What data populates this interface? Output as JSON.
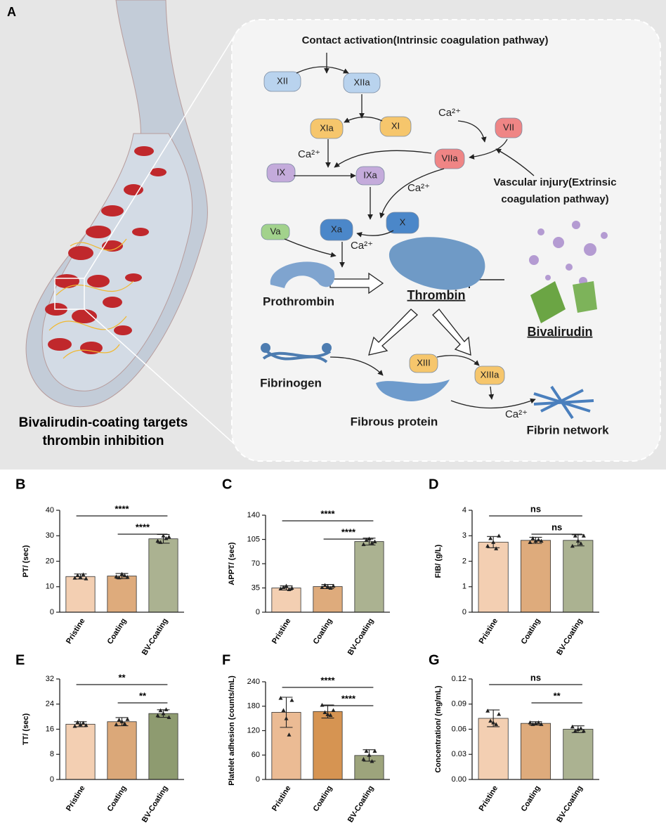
{
  "diagram": {
    "panel": "A",
    "intrinsic": "Contact activation(Intrinsic coagulation pathway)",
    "extrinsic": [
      "Vascular injury(Extrinsic",
      "coagulation pathway)"
    ],
    "calcium": [
      "Ca²⁺",
      "Ca²⁺",
      "Ca²⁺",
      "Ca²⁺",
      "Ca²⁺"
    ],
    "nodes": [
      "XII",
      "XIIa",
      "XIa",
      "XI",
      "VII",
      "VIIa",
      "IX",
      "IXa",
      "Xa",
      "X",
      "Va",
      "XIII",
      "XIIIa"
    ],
    "prothrombin": "Prothrombin",
    "thrombin": "Thrombin",
    "bivalirudin": "Bivalirudin",
    "fibrinogen": "Fibrinogen",
    "fibrous_protein": "Fibrous protein",
    "fibrin_network": "Fibrin network",
    "caption": [
      "Bivalirudin-coating targets",
      "thrombin inhibition"
    ]
  },
  "chart_data": [
    {
      "type": "bar",
      "panel": "B",
      "ylabel": "PT/ (sec)",
      "categories": [
        "Pristine",
        "Coating",
        "BV-Coating"
      ],
      "values": [
        14,
        14.2,
        28.8
      ],
      "errors": [
        1,
        1,
        1.7
      ],
      "points": [
        [
          13.5,
          14.5,
          13.8,
          14.8,
          13.2
        ],
        [
          14,
          13.6,
          15,
          14.4,
          13.8
        ],
        [
          28,
          27.5,
          30,
          29,
          29.6
        ]
      ],
      "colors": [
        "#f3cfb2",
        "#deab7c",
        "#abb291"
      ],
      "ylim": [
        0,
        40
      ],
      "yticks": [
        0,
        10,
        20,
        30,
        40
      ],
      "annotations": [
        {
          "label": "****",
          "between": [
            0,
            2
          ]
        },
        {
          "label": "****",
          "between": [
            1,
            2
          ]
        }
      ]
    },
    {
      "type": "bar",
      "panel": "C",
      "ylabel": "APPT/ (sec)",
      "categories": [
        "Pristine",
        "Coating",
        "BV-Coating"
      ],
      "values": [
        35,
        37,
        102
      ],
      "errors": [
        3,
        3,
        5
      ],
      "points": [
        [
          34,
          36,
          38,
          33,
          35
        ],
        [
          36,
          39,
          37,
          35,
          38
        ],
        [
          98,
          104,
          106,
          100,
          102
        ]
      ],
      "colors": [
        "#f3cfb2",
        "#deab7c",
        "#abb291"
      ],
      "ylim": [
        0,
        140
      ],
      "yticks": [
        0,
        35,
        70,
        105,
        140
      ],
      "annotations": [
        {
          "label": "****",
          "between": [
            0,
            2
          ]
        },
        {
          "label": "****",
          "between": [
            1,
            2
          ]
        }
      ]
    },
    {
      "type": "bar",
      "panel": "D",
      "ylabel": "FIB/ (g/L)",
      "categories": [
        "Pristine",
        "Coating",
        "BV-Coating"
      ],
      "values": [
        2.75,
        2.82,
        2.82
      ],
      "errors": [
        0.22,
        0.12,
        0.22
      ],
      "points": [
        [
          2.6,
          2.9,
          2.75,
          2.5,
          3.0
        ],
        [
          2.75,
          2.9,
          2.8,
          2.85,
          2.8
        ],
        [
          2.6,
          3.0,
          2.8,
          2.7,
          3.0
        ]
      ],
      "colors": [
        "#f3cfb2",
        "#deab7c",
        "#abb291"
      ],
      "ylim": [
        0,
        4
      ],
      "yticks": [
        0,
        1,
        2,
        3,
        4
      ],
      "annotations": [
        {
          "label": "ns",
          "between": [
            0,
            2
          ]
        },
        {
          "label": "ns",
          "between": [
            1,
            2
          ]
        }
      ]
    },
    {
      "type": "bar",
      "panel": "E",
      "ylabel": "TT/ (sec)",
      "categories": [
        "Pristine",
        "Coating",
        "BV-Coating"
      ],
      "values": [
        17.6,
        18.4,
        21
      ],
      "errors": [
        0.8,
        1.3,
        1.2
      ],
      "points": [
        [
          17,
          18.2,
          17.5,
          18,
          17.3
        ],
        [
          17.5,
          19,
          18.5,
          17.8,
          19.2
        ],
        [
          20.4,
          22,
          21,
          22.3,
          19.8
        ]
      ],
      "colors": [
        "#f3cfb2",
        "#dba879",
        "#8e9b70"
      ],
      "ylim": [
        0,
        32
      ],
      "yticks": [
        0,
        8,
        16,
        24,
        32
      ],
      "annotations": [
        {
          "label": "**",
          "between": [
            0,
            2
          ]
        },
        {
          "label": "**",
          "between": [
            1,
            2
          ]
        }
      ]
    },
    {
      "type": "bar",
      "panel": "F",
      "ylabel": "Platelet adhesion (counts/mL)",
      "categories": [
        "Pristine",
        "Coating",
        "BV-Coating"
      ],
      "values": [
        165,
        167,
        59
      ],
      "errors": [
        37,
        16,
        14
      ],
      "points": [
        [
          200,
          170,
          150,
          110,
          195
        ],
        [
          183,
          165,
          160,
          158,
          170
        ],
        [
          50,
          70,
          60,
          45,
          70
        ]
      ],
      "colors": [
        "#ebbb94",
        "#d69452",
        "#9da47c"
      ],
      "ylim": [
        0,
        240
      ],
      "yticks": [
        0,
        60,
        120,
        180,
        240
      ],
      "annotations": [
        {
          "label": "****",
          "between": [
            0,
            2
          ]
        },
        {
          "label": "****",
          "between": [
            1,
            2
          ]
        }
      ]
    },
    {
      "type": "bar",
      "panel": "G",
      "ylabel": "Concentration/ (mg/mL)",
      "categories": [
        "Pristine",
        "Coating",
        "BV-Coating"
      ],
      "values": [
        0.073,
        0.067,
        0.06
      ],
      "errors": [
        0.01,
        0.002,
        0.004
      ],
      "points": [
        [
          0.082,
          0.07,
          0.068,
          0.066,
          0.078
        ],
        [
          0.068,
          0.066,
          0.067,
          0.068,
          0.066
        ],
        [
          0.063,
          0.058,
          0.06,
          0.061,
          0.058
        ]
      ],
      "colors": [
        "#f3cfb2",
        "#deab7c",
        "#abb291"
      ],
      "ylim": [
        0,
        0.12
      ],
      "yticks": [
        {
          "value": 0,
          "label": "0.00"
        },
        0.03,
        0.06,
        0.09,
        0.12
      ],
      "annotations": [
        {
          "label": "ns",
          "between": [
            0,
            2
          ]
        },
        {
          "label": "**",
          "between": [
            1,
            2
          ]
        }
      ]
    }
  ]
}
